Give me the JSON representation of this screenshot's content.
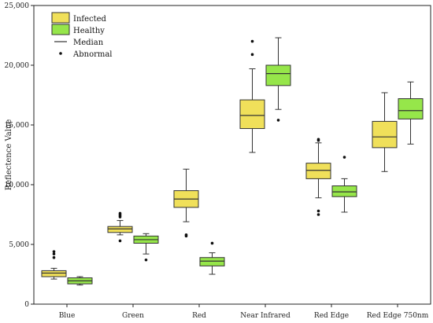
{
  "chart_data": {
    "type": "boxplot",
    "title": "",
    "xlabel": "",
    "ylabel": "Reflectence Value",
    "ylim": [
      0,
      25000
    ],
    "yticks": [
      0,
      5000,
      10000,
      15000,
      20000,
      25000
    ],
    "ytick_labels": [
      "0",
      "5,000",
      "10,000",
      "15,000",
      "20,000",
      "25,000"
    ],
    "categories": [
      "Blue",
      "Green",
      "Red",
      "Near Infrared",
      "Red Edge",
      "Red Edge 750nm"
    ],
    "legend": {
      "placement": "top-left",
      "entries": [
        {
          "label": "Infected",
          "kind": "box",
          "color": "#F0E05A"
        },
        {
          "label": "Healthy",
          "kind": "box",
          "color": "#96E64A"
        },
        {
          "label": "Median",
          "kind": "line",
          "color": "#333333"
        },
        {
          "label": "Abnormal",
          "kind": "dot",
          "color": "#111111"
        }
      ]
    },
    "series": [
      {
        "name": "Infected",
        "color": "#F0E05A",
        "boxes": [
          {
            "whislo": 2100,
            "q1": 2300,
            "med": 2600,
            "q3": 2800,
            "whishi": 3000,
            "fliers": [
              3900,
              4200,
              4400
            ]
          },
          {
            "whislo": 5800,
            "q1": 6000,
            "med": 6300,
            "q3": 6500,
            "whishi": 7000,
            "fliers": [
              5300,
              7300,
              7400,
              7500,
              7600
            ]
          },
          {
            "whislo": 6900,
            "q1": 8100,
            "med": 8800,
            "q3": 9500,
            "whishi": 11300,
            "fliers": [
              5700,
              5800
            ]
          },
          {
            "whislo": 12700,
            "q1": 14700,
            "med": 15800,
            "q3": 17100,
            "whishi": 19700,
            "fliers": [
              20900,
              22000
            ]
          },
          {
            "whislo": 8900,
            "q1": 10500,
            "med": 11200,
            "q3": 11800,
            "whishi": 13500,
            "fliers": [
              7500,
              7800,
              13700,
              13800
            ]
          },
          {
            "whislo": 11100,
            "q1": 13100,
            "med": 14000,
            "q3": 15300,
            "whishi": 17700,
            "fliers": []
          }
        ]
      },
      {
        "name": "Healthy",
        "color": "#96E64A",
        "boxes": [
          {
            "whislo": 1600,
            "q1": 1700,
            "med": 1950,
            "q3": 2200,
            "whishi": 2300,
            "fliers": []
          },
          {
            "whislo": 4200,
            "q1": 5100,
            "med": 5400,
            "q3": 5700,
            "whishi": 5900,
            "fliers": [
              3700
            ]
          },
          {
            "whislo": 2500,
            "q1": 3200,
            "med": 3600,
            "q3": 3900,
            "whishi": 4300,
            "fliers": [
              5100
            ]
          },
          {
            "whislo": 16300,
            "q1": 18300,
            "med": 19300,
            "q3": 20000,
            "whishi": 22300,
            "fliers": [
              15400
            ]
          },
          {
            "whislo": 7700,
            "q1": 9000,
            "med": 9400,
            "q3": 9900,
            "whishi": 10500,
            "fliers": [
              12300
            ]
          },
          {
            "whislo": 13400,
            "q1": 15500,
            "med": 16200,
            "q3": 17200,
            "whishi": 18600,
            "fliers": []
          }
        ]
      }
    ]
  }
}
